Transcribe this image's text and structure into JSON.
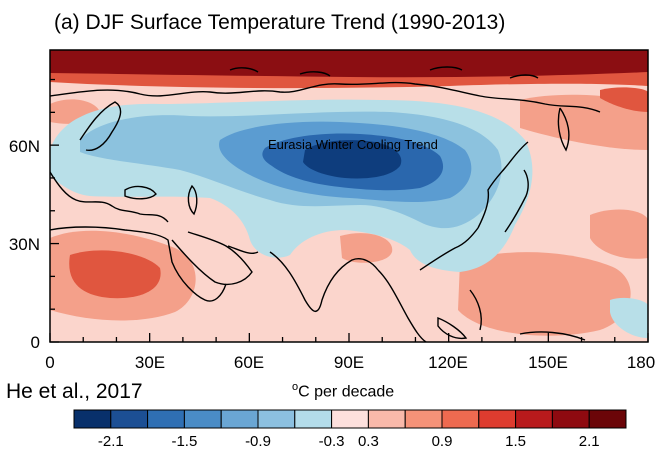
{
  "title": "(a) DJF Surface Temperature Trend (1990-2013)",
  "annotation": "Eurasia Winter Cooling Trend",
  "credit": "He et al., 2017",
  "units": {
    "superscript": "o",
    "text": "C per decade"
  },
  "axes": {
    "x_ticks": [
      "0",
      "30E",
      "60E",
      "90E",
      "120E",
      "150E",
      "180"
    ],
    "y_ticks": [
      "0",
      "30N",
      "60N"
    ],
    "x_range_deg": [
      0,
      180
    ],
    "y_range_deg": [
      0,
      90
    ]
  },
  "colorbar": {
    "colors": [
      "#08306b",
      "#1c4f94",
      "#2f6fb3",
      "#4a8cc6",
      "#6aa6d4",
      "#8cc0e0",
      "#b3dcea",
      "#fde0dd",
      "#f9b9aa",
      "#f59278",
      "#ee6a50",
      "#de3c2f",
      "#b81a1c",
      "#8e0a10",
      "#6b0508"
    ],
    "labels": [
      "-2.1",
      "-1.5",
      "-0.9",
      "-0.3",
      "0.3",
      "0.9",
      "1.5",
      "2.1"
    ],
    "boundaries": [
      -2.4,
      -2.1,
      -1.8,
      -1.5,
      -1.2,
      -0.9,
      -0.6,
      -0.3,
      0.3,
      0.6,
      0.9,
      1.2,
      1.5,
      1.8,
      2.1,
      2.4
    ]
  },
  "field_colors": {
    "strong_warm": "#8b0e12",
    "warm": "#e0563f",
    "mild_warm": "#f4a08a",
    "weak_warm": "#fbd5cc",
    "weak_cool": "#b8dfe8",
    "cool": "#8cc2de",
    "mid_cool": "#5b9cd1",
    "strong_cool": "#2a67ad",
    "core_cool": "#0e3d7d"
  }
}
